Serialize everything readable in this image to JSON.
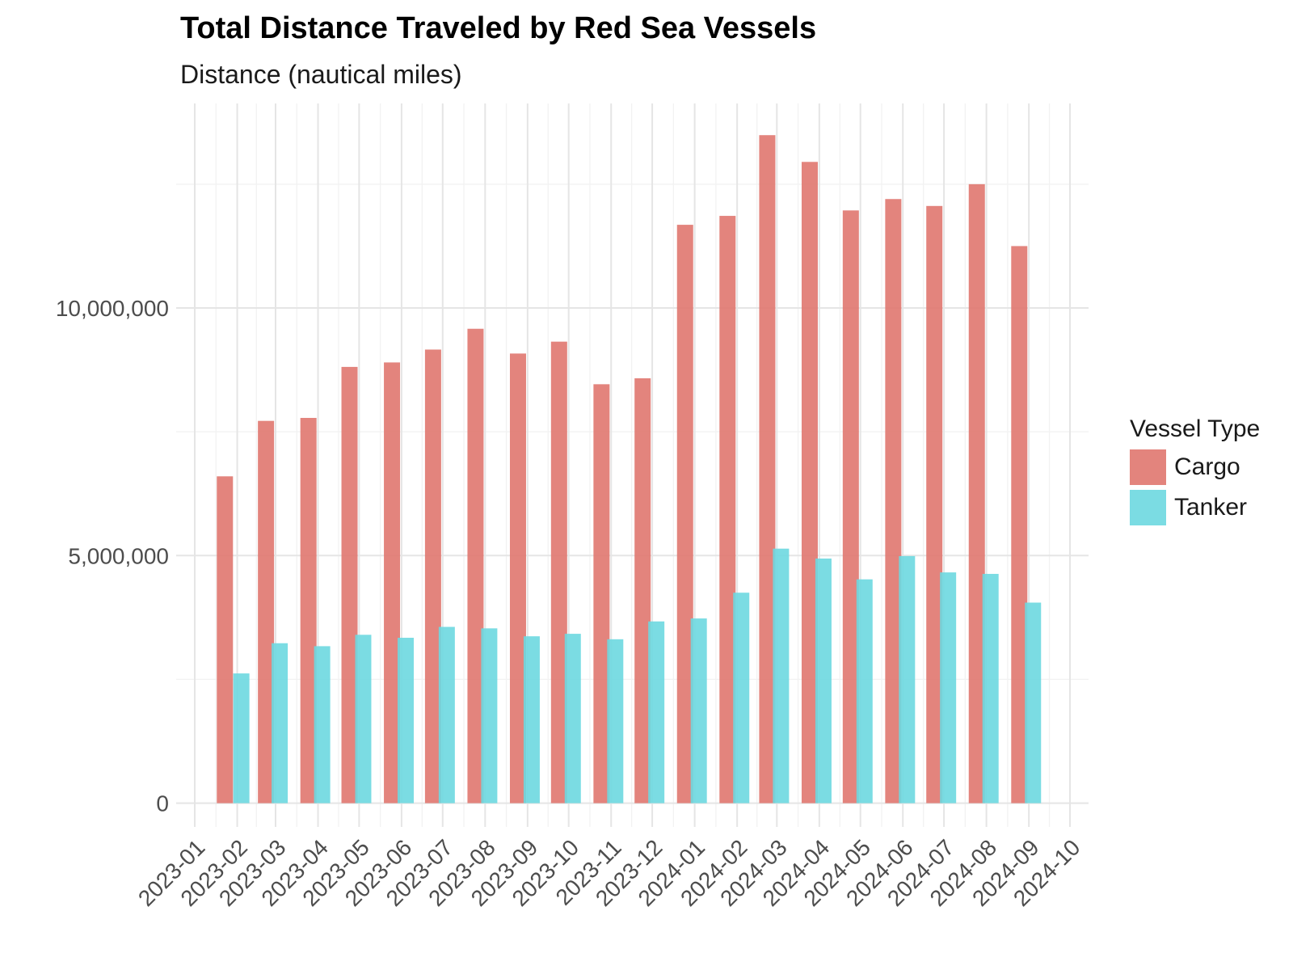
{
  "chart_data": {
    "type": "bar",
    "title": "Total Distance Traveled by Red Sea Vessels",
    "subtitle": "Distance (nautical miles)",
    "xlabel": "",
    "ylabel": "",
    "x_tick_labels": [
      "2023-01",
      "2023-02",
      "2023-03",
      "2023-04",
      "2023-05",
      "2023-06",
      "2023-07",
      "2023-08",
      "2023-09",
      "2023-10",
      "2023-11",
      "2023-12",
      "2024-01",
      "2024-02",
      "2024-03",
      "2024-04",
      "2024-05",
      "2024-06",
      "2024-07",
      "2024-08",
      "2024-09",
      "2024-10"
    ],
    "y_ticks": [
      0,
      5000000,
      10000000
    ],
    "y_tick_labels": [
      "0",
      "5,000,000",
      "10,000,000"
    ],
    "ylim": [
      -480000,
      14130000
    ],
    "grid": true,
    "legend_title": "Vessel Type",
    "legend_position": "right",
    "series": [
      {
        "name": "Cargo",
        "color": "#E0776F",
        "points": [
          {
            "date": "2023-01-23",
            "value": 6600000
          },
          {
            "date": "2023-02-22",
            "value": 7720000
          },
          {
            "date": "2023-03-25",
            "value": 7780000
          },
          {
            "date": "2023-04-24",
            "value": 8810000
          },
          {
            "date": "2023-05-25",
            "value": 8900000
          },
          {
            "date": "2023-06-24",
            "value": 9160000
          },
          {
            "date": "2023-07-25",
            "value": 9580000
          },
          {
            "date": "2023-08-25",
            "value": 9080000
          },
          {
            "date": "2023-09-24",
            "value": 9320000
          },
          {
            "date": "2023-10-25",
            "value": 8460000
          },
          {
            "date": "2023-11-24",
            "value": 8580000
          },
          {
            "date": "2023-12-25",
            "value": 11680000
          },
          {
            "date": "2024-01-25",
            "value": 11860000
          },
          {
            "date": "2024-02-23",
            "value": 13490000
          },
          {
            "date": "2024-03-25",
            "value": 12950000
          },
          {
            "date": "2024-04-24",
            "value": 11970000
          },
          {
            "date": "2024-05-25",
            "value": 12200000
          },
          {
            "date": "2024-06-24",
            "value": 12060000
          },
          {
            "date": "2024-07-25",
            "value": 12500000
          },
          {
            "date": "2024-08-25",
            "value": 11250000
          }
        ]
      },
      {
        "name": "Tanker",
        "color": "#6DD8E0",
        "points": [
          {
            "date": "2023-02-04",
            "value": 2620000
          },
          {
            "date": "2023-03-04",
            "value": 3230000
          },
          {
            "date": "2023-04-04",
            "value": 3170000
          },
          {
            "date": "2023-05-04",
            "value": 3400000
          },
          {
            "date": "2023-06-04",
            "value": 3340000
          },
          {
            "date": "2023-07-04",
            "value": 3560000
          },
          {
            "date": "2023-08-04",
            "value": 3530000
          },
          {
            "date": "2023-09-04",
            "value": 3370000
          },
          {
            "date": "2023-10-04",
            "value": 3420000
          },
          {
            "date": "2023-11-04",
            "value": 3310000
          },
          {
            "date": "2023-12-04",
            "value": 3670000
          },
          {
            "date": "2024-01-04",
            "value": 3730000
          },
          {
            "date": "2024-02-04",
            "value": 4250000
          },
          {
            "date": "2024-03-04",
            "value": 5140000
          },
          {
            "date": "2024-04-04",
            "value": 4940000
          },
          {
            "date": "2024-05-04",
            "value": 4520000
          },
          {
            "date": "2024-06-04",
            "value": 4990000
          },
          {
            "date": "2024-07-04",
            "value": 4660000
          },
          {
            "date": "2024-08-04",
            "value": 4630000
          },
          {
            "date": "2024-09-04",
            "value": 4050000
          }
        ]
      }
    ]
  }
}
